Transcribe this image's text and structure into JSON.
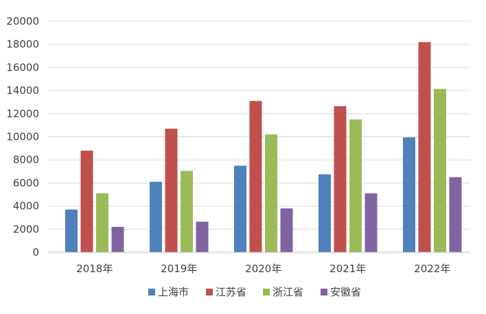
{
  "chart_data": {
    "type": "bar",
    "categories": [
      "2018年",
      "2019年",
      "2020年",
      "2021年",
      "2022年"
    ],
    "series": [
      {
        "name": "上海市",
        "color": "#4F81BD",
        "values": [
          3700,
          6100,
          7500,
          6750,
          9950
        ]
      },
      {
        "name": "江苏省",
        "color": "#C0504D",
        "values": [
          8800,
          10700,
          13100,
          12650,
          18200
        ]
      },
      {
        "name": "浙江省",
        "color": "#9BBB59",
        "values": [
          5100,
          7050,
          10200,
          11500,
          14150
        ]
      },
      {
        "name": "安徽省",
        "color": "#8064A2",
        "values": [
          2200,
          2650,
          3800,
          5100,
          6500
        ]
      }
    ],
    "yticks": [
      "0",
      "2000",
      "4000",
      "6000",
      "8000",
      "10000",
      "12000",
      "14000",
      "16000",
      "18000",
      "20000"
    ],
    "ylim": [
      0,
      20000
    ],
    "grid": true,
    "legend": "bottom"
  }
}
